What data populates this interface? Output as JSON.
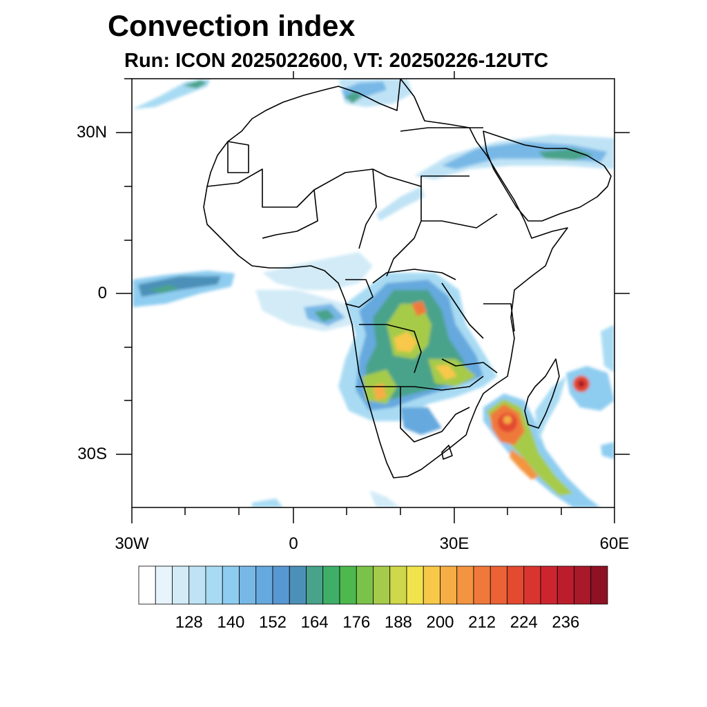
{
  "title": "Convection index",
  "subtitle": "Run: ICON 2025022600,  VT: 20250226-12UTC",
  "lat_labels": [
    "30N",
    "0",
    "30S"
  ],
  "lon_labels": [
    "30W",
    "0",
    "30E",
    "60E"
  ],
  "colorbar": {
    "tick_labels": [
      "128",
      "140",
      "152",
      "164",
      "176",
      "188",
      "200",
      "212",
      "224",
      "236"
    ],
    "colors": [
      "#ffffff",
      "#e8f4fb",
      "#d2ebf7",
      "#bfe3f5",
      "#a8dbf3",
      "#8ecdf0",
      "#78b8e6",
      "#66a9de",
      "#5898d2",
      "#4c90b8",
      "#48a38a",
      "#3faf68",
      "#4cb84e",
      "#7bc24a",
      "#a6cb4a",
      "#cfd74a",
      "#f0e34e",
      "#f7c84a",
      "#f6ad45",
      "#f39440",
      "#ef793b",
      "#ea6235",
      "#e34a30",
      "#d93530",
      "#cd2530",
      "#bc1d2c",
      "#a8192a",
      "#8f1224"
    ]
  },
  "map": {
    "lon_range": [
      -30,
      60
    ],
    "lat_range": [
      -40,
      40
    ],
    "variable": "Convection index"
  }
}
